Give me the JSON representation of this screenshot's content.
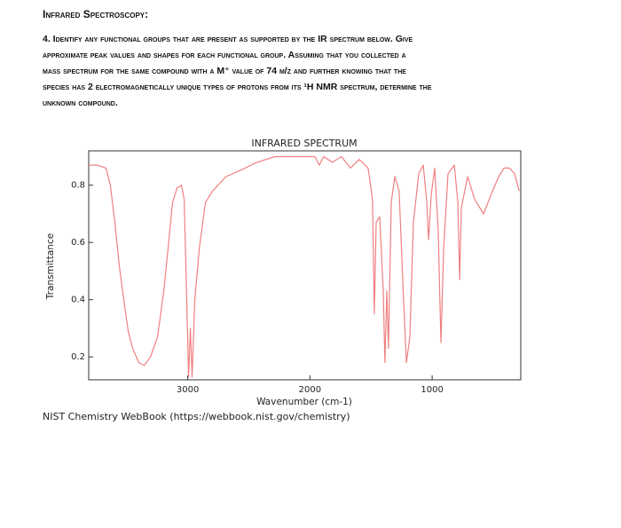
{
  "header": {
    "title": "Infrared Spectroscopy:"
  },
  "question": {
    "lines": [
      "4. Identify any functional groups that are present as supported by the IR spectrum below. Give",
      "approximate peak values and shapes for each functional group. Assuming that you collected a",
      "mass spectrum for the same compound with a M⁺ value of 74 m/z and further knowing that the",
      "species has 2 electromagnetically unique types of protons from its ¹H NMR spectrum, determine the",
      "unknown compound."
    ]
  },
  "figure": {
    "caption": "NIST Chemistry WebBook (https://webbook.nist.gov/chemistry)"
  },
  "chart_data": {
    "type": "line",
    "title": "INFRARED SPECTRUM",
    "x_label": "Wavenumber (cm-1)",
    "y_label": "Transmittance",
    "color": "#f08080",
    "xlim": [
      3810,
      275
    ],
    "ylim": [
      0.12,
      0.92
    ],
    "xticks": [
      3000,
      2000,
      1000
    ],
    "yticks": [
      0.2,
      0.4,
      0.6,
      0.8
    ],
    "x": [
      3810,
      3742,
      3669,
      3633,
      3596,
      3560,
      3523,
      3487,
      3451,
      3400,
      3356,
      3305,
      3247,
      3196,
      3160,
      3124,
      3087,
      3051,
      3029,
      3015,
      2993,
      2978,
      2964,
      2942,
      2905,
      2855,
      2796,
      2687,
      2578,
      2433,
      2287,
      2142,
      2033,
      1960,
      1924,
      1888,
      1815,
      1742,
      1669,
      1597,
      1524,
      1488,
      1473,
      1458,
      1429,
      1400,
      1386,
      1371,
      1357,
      1335,
      1306,
      1270,
      1240,
      1211,
      1182,
      1153,
      1110,
      1073,
      1044,
      1029,
      1007,
      979,
      950,
      928,
      906,
      870,
      819,
      790,
      775,
      761,
      710,
      652,
      579,
      506,
      455,
      412,
      368,
      324,
      288
    ],
    "values": [
      0.87,
      0.87,
      0.86,
      0.8,
      0.67,
      0.52,
      0.4,
      0.29,
      0.23,
      0.18,
      0.17,
      0.2,
      0.27,
      0.43,
      0.58,
      0.74,
      0.79,
      0.8,
      0.75,
      0.52,
      0.13,
      0.3,
      0.13,
      0.4,
      0.58,
      0.74,
      0.78,
      0.83,
      0.85,
      0.88,
      0.9,
      0.9,
      0.9,
      0.9,
      0.87,
      0.9,
      0.88,
      0.9,
      0.86,
      0.89,
      0.86,
      0.75,
      0.35,
      0.67,
      0.69,
      0.43,
      0.18,
      0.43,
      0.23,
      0.74,
      0.83,
      0.78,
      0.46,
      0.18,
      0.27,
      0.67,
      0.84,
      0.87,
      0.74,
      0.61,
      0.77,
      0.86,
      0.64,
      0.25,
      0.58,
      0.84,
      0.87,
      0.74,
      0.47,
      0.72,
      0.83,
      0.75,
      0.7,
      0.78,
      0.83,
      0.86,
      0.86,
      0.84,
      0.78
    ]
  }
}
